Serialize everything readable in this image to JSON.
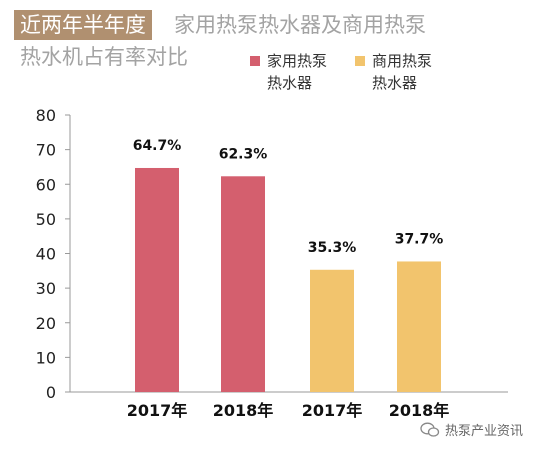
{
  "title": {
    "highlight": "近两年半年度",
    "line1_rest": "家用热泵热水器及商用热泵",
    "line2": "热水机占有率对比"
  },
  "colors": {
    "household": "#d45f6e",
    "commercial": "#f2c46d",
    "title_bg": "#b09070"
  },
  "footer": {
    "source": "热泵产业资讯",
    "icon": "wechat-icon"
  },
  "chart_data": {
    "type": "bar",
    "categories": [
      "2017年",
      "2018年",
      "2017年",
      "2018年"
    ],
    "series": [
      {
        "name": "家用热泵热水器",
        "values": [
          64.7,
          62.3,
          null,
          null
        ]
      },
      {
        "name": "商用热泵热水器",
        "values": [
          null,
          null,
          35.3,
          37.7
        ]
      }
    ],
    "data_labels": [
      "64.7%",
      "62.3%",
      "35.3%",
      "37.7%"
    ],
    "yticks": [
      0,
      10,
      20,
      30,
      40,
      50,
      60,
      70,
      80
    ],
    "ylim": [
      0,
      80
    ],
    "legend_position": "top-right",
    "grid": false
  }
}
